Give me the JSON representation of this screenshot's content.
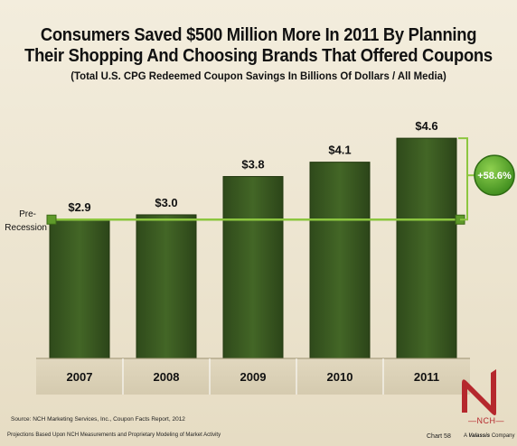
{
  "header": {
    "title_line1": "Consumers Saved $500 Million More In 2011 By Planning",
    "title_line2": "Their Shopping And Choosing Brands That Offered Coupons",
    "subtitle": "(Total U.S. CPG Redeemed Coupon Savings In Billions Of Dollars / All Media)"
  },
  "chart_data": {
    "type": "bar",
    "categories": [
      "2007",
      "2008",
      "2009",
      "2010",
      "2011"
    ],
    "values": [
      2.9,
      3.0,
      3.8,
      4.1,
      4.6
    ],
    "data_labels": [
      "$2.9",
      "$3.0",
      "$3.8",
      "$4.1",
      "$4.6"
    ],
    "ylim": [
      0,
      5.3
    ],
    "reference_line": {
      "label_line1": "Pre-",
      "label_line2": "Recession",
      "value": 2.9
    },
    "growth_badge": "+58.6%",
    "bar_color": "#3b5a22",
    "line_color": "#8cc63f"
  },
  "footer": {
    "source": "Source: NCH Marketing Services, Inc., Coupon Facts Report, 2012",
    "footnote": "Projections Based Upon NCH Measurements and Proprietary Modeling of Market Activity",
    "chart_number": "Chart 58",
    "logo_text": "NCH",
    "logo_tag_prefix": "A",
    "logo_tag_brand": "Valassis",
    "logo_tag_suffix": "Company"
  }
}
